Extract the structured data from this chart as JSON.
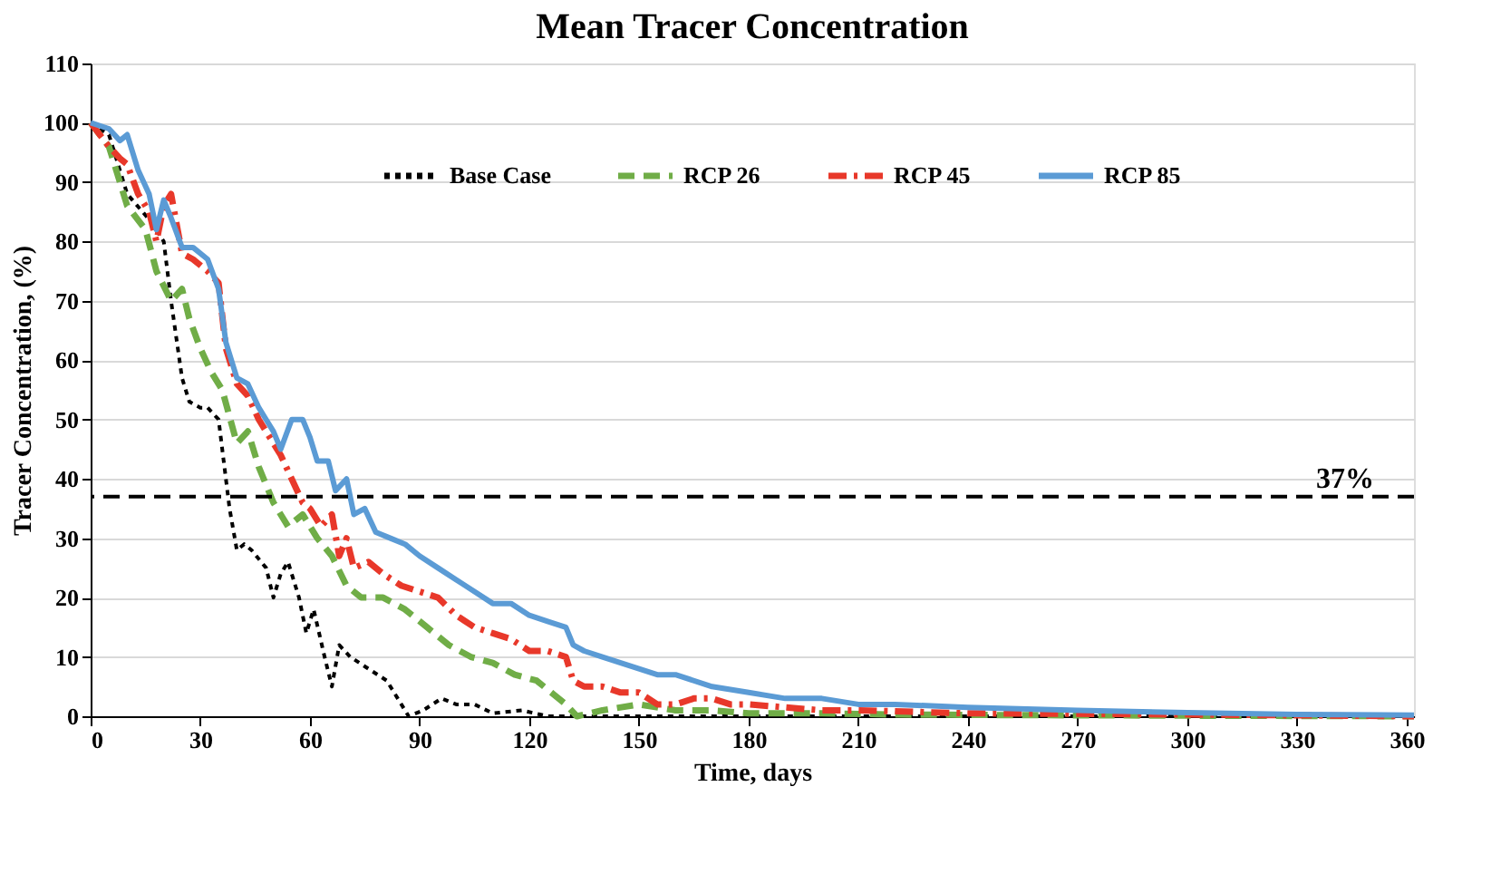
{
  "chart_data": {
    "type": "line",
    "title": "Mean Tracer Concentration",
    "xlabel": "Time, days",
    "ylabel": "Tracer Concentration, (%)",
    "xlim": [
      0,
      362
    ],
    "xticks": [
      0,
      30,
      60,
      90,
      120,
      150,
      180,
      210,
      240,
      270,
      300,
      330,
      360
    ],
    "ylim": [
      0,
      110
    ],
    "yticks": [
      0,
      10,
      20,
      30,
      40,
      50,
      60,
      70,
      80,
      90,
      100,
      110
    ],
    "grid": "y",
    "legend": "top",
    "ref_lines": [
      {
        "axis": "y",
        "value": 37,
        "label": "37%",
        "color": "#000000",
        "line_style": "dashed"
      }
    ],
    "series": [
      {
        "name": "Base Case",
        "color": "#000000",
        "line_style": "dotted",
        "x": [
          0,
          5,
          8,
          10,
          17,
          20,
          22,
          25,
          27,
          30,
          32,
          35,
          37,
          38,
          40,
          42,
          44,
          48,
          50,
          52,
          54,
          57,
          59,
          61,
          64,
          66,
          68,
          71,
          76,
          81,
          85,
          87,
          91,
          96,
          100,
          105,
          110,
          118,
          125,
          150,
          200,
          250,
          300,
          362
        ],
        "values": [
          100,
          98,
          92,
          88,
          83,
          80,
          70,
          57,
          53,
          52,
          52,
          50,
          40,
          35,
          28,
          29,
          28,
          25,
          20,
          24,
          26,
          20,
          14,
          18,
          10,
          5,
          12,
          10,
          8,
          6,
          2,
          0,
          1,
          3,
          2,
          2,
          0.5,
          1,
          0,
          0,
          0,
          0,
          0,
          0
        ]
      },
      {
        "name": "RCP 26",
        "color": "#70ad47",
        "line_style": "dashed",
        "x": [
          0,
          5,
          10,
          15,
          18,
          22,
          25,
          27,
          30,
          33,
          36,
          40,
          43,
          46,
          50,
          54,
          58,
          62,
          66,
          70,
          74,
          80,
          86,
          92,
          98,
          104,
          110,
          116,
          122,
          126,
          130,
          133,
          140,
          150,
          160,
          170,
          180,
          200,
          220,
          250,
          300,
          362
        ],
        "values": [
          100,
          96,
          86,
          82,
          75,
          70,
          72,
          67,
          62,
          58,
          55,
          46,
          48,
          42,
          36,
          32,
          34,
          30,
          27,
          22,
          20,
          20,
          18,
          15,
          12,
          10,
          9,
          7,
          6,
          4,
          2,
          0,
          1,
          2,
          1,
          1,
          0.5,
          0.5,
          0.3,
          0.2,
          0.1,
          0
        ]
      },
      {
        "name": "RCP 45",
        "color": "#e8382a",
        "line_style": "dashdot",
        "x": [
          0,
          5,
          8,
          10,
          13,
          16,
          18,
          20,
          22,
          25,
          28,
          32,
          35,
          37,
          40,
          43,
          46,
          48,
          52,
          55,
          58,
          60,
          63,
          66,
          68,
          70,
          72,
          76,
          80,
          85,
          90,
          95,
          100,
          105,
          110,
          115,
          120,
          125,
          130,
          132,
          135,
          140,
          145,
          150,
          155,
          160,
          165,
          170,
          175,
          180,
          190,
          200,
          210,
          240,
          300,
          362
        ],
        "values": [
          100,
          96,
          94,
          93,
          88,
          85,
          80,
          86,
          88,
          78,
          77,
          75,
          73,
          62,
          56,
          54,
          50,
          48,
          44,
          40,
          36,
          35,
          32,
          34,
          27,
          30,
          25,
          26,
          24,
          22,
          21,
          20,
          17,
          15,
          14,
          13,
          11,
          11,
          10,
          6,
          5,
          5,
          4,
          4,
          2,
          2,
          3,
          3,
          2,
          2,
          1.5,
          1,
          1,
          0.5,
          0.3,
          0
        ]
      },
      {
        "name": "RCP 85",
        "color": "#5b9bd5",
        "line_style": "solid",
        "x": [
          0,
          5,
          8,
          10,
          13,
          16,
          18,
          20,
          22,
          25,
          28,
          32,
          35,
          37,
          40,
          43,
          46,
          48,
          50,
          52,
          55,
          58,
          60,
          62,
          65,
          67,
          70,
          72,
          75,
          78,
          82,
          86,
          90,
          95,
          100,
          105,
          110,
          115,
          120,
          125,
          130,
          132,
          135,
          140,
          145,
          150,
          155,
          160,
          170,
          180,
          190,
          200,
          210,
          220,
          240,
          270,
          300,
          330,
          362
        ],
        "values": [
          100,
          99,
          97,
          98,
          92,
          88,
          82,
          87,
          84,
          79,
          79,
          77,
          72,
          63,
          57,
          56,
          52,
          50,
          48,
          45,
          50,
          50,
          47,
          43,
          43,
          38,
          40,
          34,
          35,
          31,
          30,
          29,
          27,
          25,
          23,
          21,
          19,
          19,
          17,
          16,
          15,
          12,
          11,
          10,
          9,
          8,
          7,
          7,
          5,
          4,
          3,
          3,
          2,
          2,
          1.5,
          1,
          0.6,
          0.3,
          0.2
        ]
      }
    ]
  }
}
